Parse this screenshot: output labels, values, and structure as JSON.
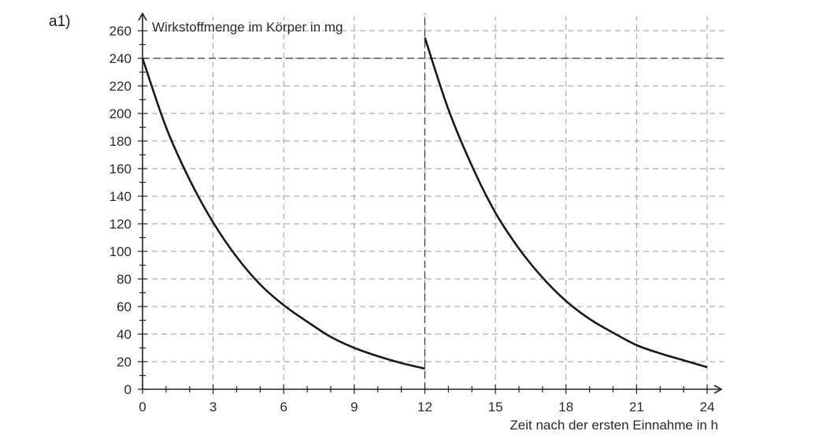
{
  "panel_label": "a1)",
  "chart_data": {
    "type": "line",
    "ylabel": "Wirkstoffmenge im Körper in mg",
    "xlabel": "Zeit nach der ersten Einnahme in h",
    "xlim": [
      0,
      24
    ],
    "ylim": [
      0,
      260
    ],
    "xticks": [
      0,
      3,
      6,
      9,
      12,
      15,
      18,
      21,
      24
    ],
    "yticks": [
      0,
      20,
      40,
      60,
      80,
      100,
      120,
      140,
      160,
      180,
      200,
      220,
      240,
      260
    ],
    "grid": true,
    "reference_lines": [
      {
        "axis": "y",
        "value": 240
      },
      {
        "axis": "x",
        "value": 12
      }
    ],
    "series": [
      {
        "x": [
          0,
          1,
          2,
          3,
          4,
          5,
          6,
          7,
          8,
          9,
          10,
          11,
          12
        ],
        "y": [
          240,
          190,
          152,
          121,
          96,
          76,
          61,
          49,
          38,
          30,
          24,
          19,
          15
        ]
      },
      {
        "x": [
          12,
          13,
          14,
          15,
          16,
          17,
          18,
          19,
          20,
          21,
          22,
          23,
          24
        ],
        "y": [
          255,
          203,
          162,
          128,
          102,
          81,
          64,
          51,
          41,
          32,
          26,
          21,
          16
        ]
      }
    ]
  }
}
